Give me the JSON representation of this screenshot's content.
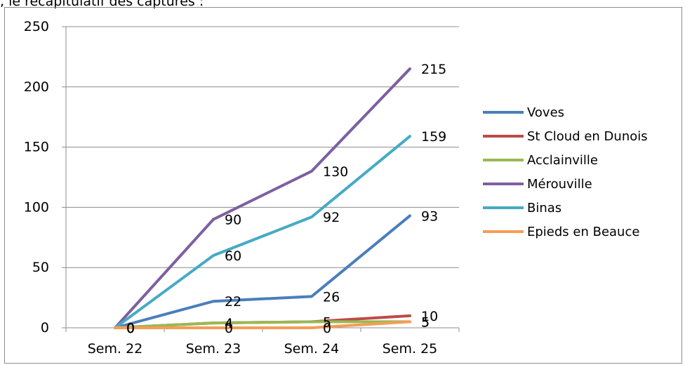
{
  "caption": ", le récapitulatif des captures :",
  "chart_data": {
    "type": "line",
    "categories": [
      "Sem. 22",
      "Sem. 23",
      "Sem. 24",
      "Sem. 25"
    ],
    "ylim": [
      0,
      250
    ],
    "yticks": [
      0,
      50,
      100,
      150,
      200,
      250
    ],
    "grid": true,
    "legend_position": "right",
    "series": [
      {
        "name": "Voves",
        "color": "#4a7ebb",
        "values": [
          0,
          22,
          26,
          93
        ]
      },
      {
        "name": "St Cloud en Dunois",
        "color": "#be4b48",
        "values": [
          0,
          4,
          5,
          10
        ]
      },
      {
        "name": "Acclainville",
        "color": "#98b954",
        "values": [
          0,
          4,
          5,
          5
        ]
      },
      {
        "name": "Mérouville",
        "color": "#7d60a0",
        "values": [
          0,
          90,
          130,
          215
        ]
      },
      {
        "name": "Binas",
        "color": "#46aac5",
        "values": [
          0,
          60,
          92,
          159
        ]
      },
      {
        "name": "Epieds en Beauce",
        "color": "#f59d56",
        "values": [
          0,
          0,
          0,
          5
        ]
      }
    ]
  }
}
